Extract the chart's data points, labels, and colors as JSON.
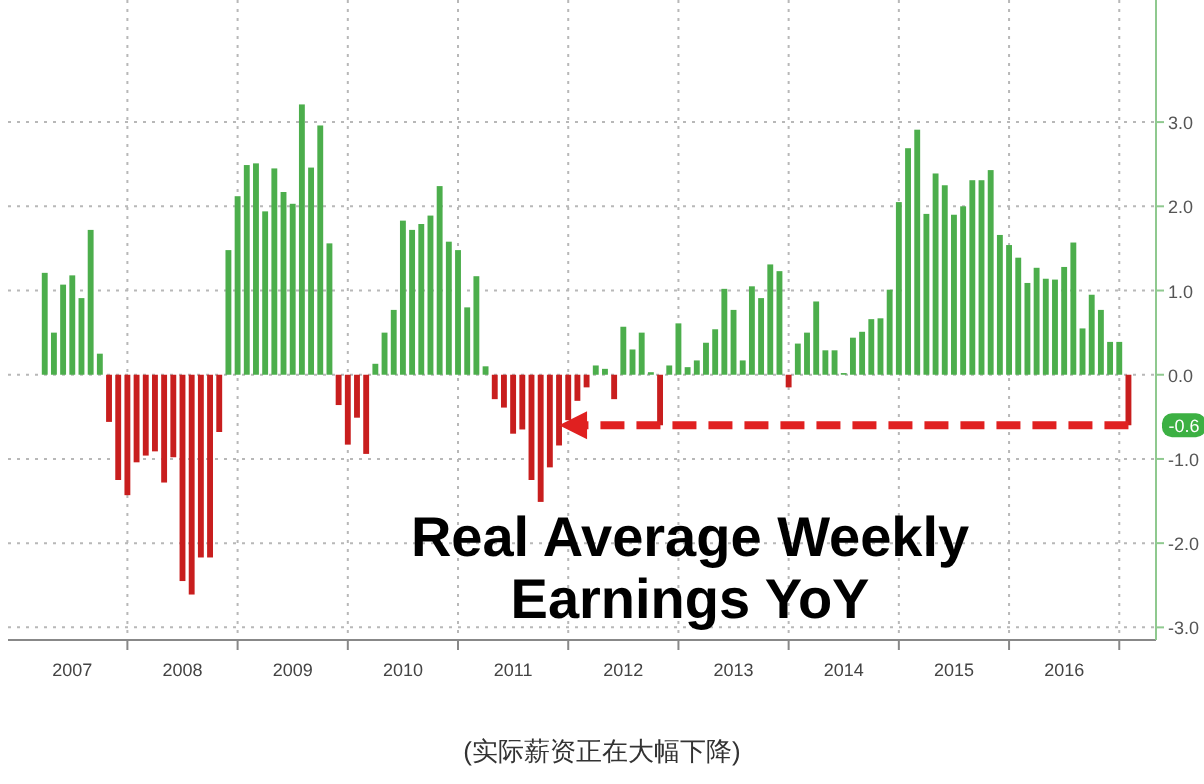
{
  "chart_data": {
    "type": "bar",
    "title": "Real Average Weekly Earnings YoY",
    "annotations": [
      {
        "text": "-0.6",
        "x": "2017-02",
        "y": -0.6
      },
      "(实际薪资正在大幅下降)"
    ],
    "x": [
      "2007-04",
      "2007-05",
      "2007-06",
      "2007-07",
      "2007-08",
      "2007-09",
      "2007-10",
      "2007-11",
      "2007-12",
      "2008-01",
      "2008-02",
      "2008-03",
      "2008-04",
      "2008-05",
      "2008-06",
      "2008-07",
      "2008-08",
      "2008-09",
      "2008-10",
      "2008-11",
      "2008-12",
      "2009-01",
      "2009-02",
      "2009-03",
      "2009-04",
      "2009-05",
      "2009-06",
      "2009-07",
      "2009-08",
      "2009-09",
      "2009-10",
      "2009-11",
      "2009-12",
      "2010-01",
      "2010-02",
      "2010-03",
      "2010-04",
      "2010-05",
      "2010-06",
      "2010-07",
      "2010-08",
      "2010-09",
      "2010-10",
      "2010-11",
      "2010-12",
      "2011-01",
      "2011-02",
      "2011-03",
      "2011-04",
      "2011-05",
      "2011-06",
      "2011-07",
      "2011-08",
      "2011-09",
      "2011-10",
      "2011-11",
      "2011-12",
      "2012-01",
      "2012-02",
      "2012-03",
      "2012-04",
      "2012-05",
      "2012-06",
      "2012-07",
      "2012-08",
      "2012-09",
      "2012-10",
      "2012-11",
      "2012-12",
      "2013-01",
      "2013-02",
      "2013-03",
      "2013-04",
      "2013-05",
      "2013-06",
      "2013-07",
      "2013-08",
      "2013-09",
      "2013-10",
      "2013-11",
      "2013-12",
      "2014-01",
      "2014-02",
      "2014-03",
      "2014-04",
      "2014-05",
      "2014-06",
      "2014-07",
      "2014-08",
      "2014-09",
      "2014-10",
      "2014-11",
      "2014-12",
      "2015-01",
      "2015-02",
      "2015-03",
      "2015-04",
      "2015-05",
      "2015-06",
      "2015-07",
      "2015-08",
      "2015-09",
      "2015-10",
      "2015-11",
      "2015-12",
      "2016-01",
      "2016-02",
      "2016-03",
      "2016-04",
      "2016-05",
      "2016-06",
      "2016-07",
      "2016-08",
      "2016-09",
      "2016-10",
      "2016-11",
      "2016-12",
      "2017-01",
      "2017-02"
    ],
    "values": [
      1.21,
      0.5,
      1.07,
      1.18,
      0.91,
      1.72,
      0.25,
      -0.56,
      -1.25,
      -1.43,
      -1.04,
      -0.96,
      -0.91,
      -1.28,
      -0.98,
      -2.45,
      -2.61,
      -2.17,
      -2.17,
      -0.68,
      1.48,
      2.12,
      2.49,
      2.51,
      1.94,
      2.45,
      2.17,
      2.03,
      3.21,
      2.46,
      2.96,
      1.56,
      -0.36,
      -0.83,
      -0.51,
      -0.94,
      0.13,
      0.5,
      0.77,
      1.83,
      1.72,
      1.79,
      1.89,
      2.24,
      1.58,
      1.48,
      0.8,
      1.17,
      0.1,
      -0.29,
      -0.39,
      -0.7,
      -0.65,
      -1.25,
      -1.51,
      -1.1,
      -0.84,
      -0.54,
      -0.31,
      -0.15,
      0.11,
      0.07,
      -0.29,
      0.57,
      0.3,
      0.5,
      0.03,
      -0.6,
      0.11,
      0.61,
      0.09,
      0.17,
      0.38,
      0.54,
      1.02,
      0.77,
      0.17,
      1.05,
      0.91,
      1.31,
      1.23,
      -0.15,
      0.37,
      0.5,
      0.87,
      0.29,
      0.29,
      0.02,
      0.44,
      0.51,
      0.66,
      0.67,
      1.01,
      2.05,
      2.69,
      2.91,
      1.91,
      2.39,
      2.25,
      1.9,
      2.0,
      2.31,
      2.31,
      2.43,
      1.66,
      1.54,
      1.39,
      1.09,
      1.27,
      1.14,
      1.13,
      1.28,
      1.57,
      0.55,
      0.95,
      0.77,
      0.39,
      0.39,
      -0.6
    ],
    "colors": [
      "#4cae4c",
      "#4cae4c",
      "#4cae4c",
      "#4cae4c",
      "#4cae4c",
      "#4cae4c",
      "#4cae4c",
      "#c81e1e",
      "#c81e1e",
      "#c81e1e",
      "#c81e1e",
      "#c81e1e",
      "#c81e1e",
      "#c81e1e",
      "#c81e1e",
      "#c81e1e",
      "#c81e1e",
      "#c81e1e",
      "#c81e1e",
      "#c81e1e",
      "#4cae4c",
      "#4cae4c",
      "#4cae4c",
      "#4cae4c",
      "#4cae4c",
      "#4cae4c",
      "#4cae4c",
      "#4cae4c",
      "#4cae4c",
      "#4cae4c",
      "#4cae4c",
      "#4cae4c",
      "#c81e1e",
      "#c81e1e",
      "#c81e1e",
      "#c81e1e",
      "#4cae4c",
      "#4cae4c",
      "#4cae4c",
      "#4cae4c",
      "#4cae4c",
      "#4cae4c",
      "#4cae4c",
      "#4cae4c",
      "#4cae4c",
      "#4cae4c",
      "#4cae4c",
      "#4cae4c",
      "#4cae4c",
      "#c81e1e",
      "#c81e1e",
      "#c81e1e",
      "#c81e1e",
      "#c81e1e",
      "#c81e1e",
      "#c81e1e",
      "#c81e1e",
      "#c81e1e",
      "#c81e1e",
      "#c81e1e",
      "#4cae4c",
      "#4cae4c",
      "#c81e1e",
      "#4cae4c",
      "#4cae4c",
      "#4cae4c",
      "#4cae4c",
      "#c81e1e",
      "#4cae4c",
      "#4cae4c",
      "#4cae4c",
      "#4cae4c",
      "#4cae4c",
      "#4cae4c",
      "#4cae4c",
      "#4cae4c",
      "#4cae4c",
      "#4cae4c",
      "#4cae4c",
      "#4cae4c",
      "#4cae4c",
      "#c81e1e",
      "#4cae4c",
      "#4cae4c",
      "#4cae4c",
      "#4cae4c",
      "#4cae4c",
      "#4cae4c",
      "#4cae4c",
      "#4cae4c",
      "#4cae4c",
      "#4cae4c",
      "#4cae4c",
      "#4cae4c",
      "#4cae4c",
      "#4cae4c",
      "#4cae4c",
      "#4cae4c",
      "#4cae4c",
      "#4cae4c",
      "#4cae4c",
      "#4cae4c",
      "#4cae4c",
      "#4cae4c",
      "#4cae4c",
      "#4cae4c",
      "#4cae4c",
      "#4cae4c",
      "#4cae4c",
      "#4cae4c",
      "#4cae4c",
      "#4cae4c",
      "#4cae4c",
      "#4cae4c",
      "#4cae4c",
      "#4cae4c",
      "#4cae4c",
      "#4cae4c",
      "#c81e1e"
    ],
    "xlim": [
      "2006-12",
      "2017-05"
    ],
    "xticks": [
      {
        "value": "2008-01",
        "label": null
      },
      {
        "value": "2009-01",
        "label": null
      },
      {
        "value": "2010-01",
        "label": null
      },
      {
        "value": "2011-01",
        "label": null
      },
      {
        "value": "2012-01",
        "label": null
      },
      {
        "value": "2013-01",
        "label": null
      },
      {
        "value": "2014-01",
        "label": null
      },
      {
        "value": "2015-01",
        "label": null
      },
      {
        "value": "2016-01",
        "label": null
      },
      {
        "value": "2017-01",
        "label": null
      },
      {
        "value": "2007-07",
        "label": "2007"
      },
      {
        "value": "2008-07",
        "label": "2008"
      },
      {
        "value": "2009-07",
        "label": "2009"
      },
      {
        "value": "2010-07",
        "label": "2010"
      },
      {
        "value": "2011-07",
        "label": "2011"
      },
      {
        "value": "2012-07",
        "label": "2012"
      },
      {
        "value": "2013-07",
        "label": "2013"
      },
      {
        "value": "2014-07",
        "label": "2014"
      },
      {
        "value": "2015-07",
        "label": "2015"
      },
      {
        "value": "2016-07",
        "label": "2016"
      }
    ],
    "ylim": [
      -3.15,
      4.45
    ],
    "yticks": [
      {
        "value": -3,
        "label": "-3.0"
      },
      {
        "value": -2,
        "label": "-2.0"
      },
      {
        "value": -1,
        "label": "-1.0"
      },
      {
        "value": 0,
        "label": "0.0"
      },
      {
        "value": 1,
        "label": "1.0"
      },
      {
        "value": 2,
        "label": "2.0"
      },
      {
        "value": 3,
        "label": "3.0"
      }
    ],
    "grid": true
  }
}
